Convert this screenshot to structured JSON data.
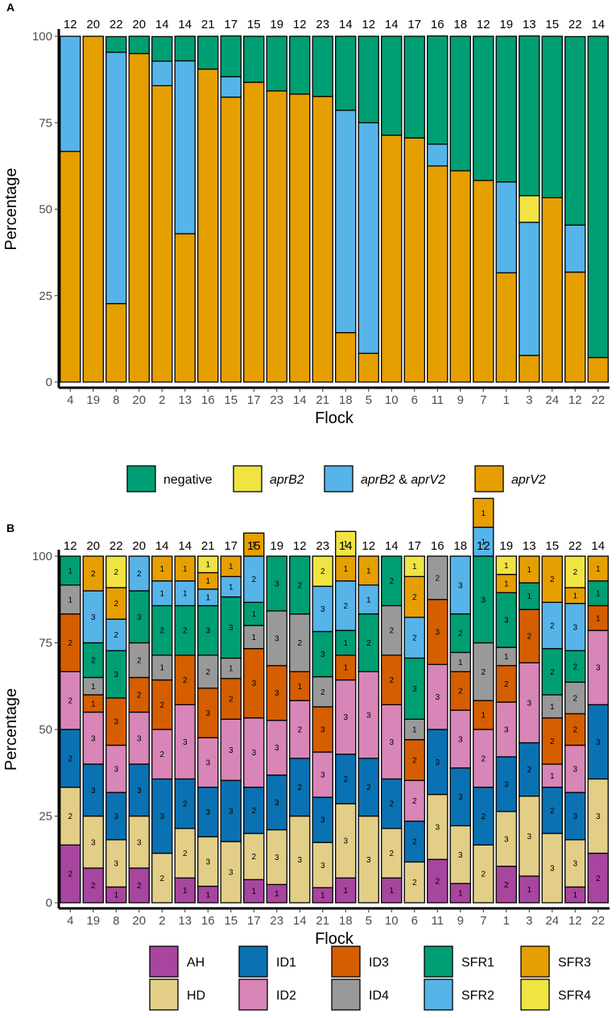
{
  "colors": {
    "negative": "#009E73",
    "aprB2": "#F0E442",
    "aprB2_aprV2": "#56B4E9",
    "aprV2": "#E69F00",
    "AH": "#A8459E",
    "HD": "#E2CE86",
    "ID1": "#0A72B2",
    "ID2": "#D885B8",
    "ID3": "#D55E00",
    "ID4": "#999999",
    "SFR1": "#009E73",
    "SFR2": "#56B4E9",
    "SFR3": "#E69F00",
    "SFR4": "#F0E442"
  },
  "chart_data": [
    {
      "panel": "A",
      "type": "bar",
      "stacked": true,
      "xlabel": "Flock",
      "ylabel": "Percentage",
      "ylim": [
        0,
        100
      ],
      "yticks": [
        0,
        25,
        50,
        75,
        100
      ],
      "categories": [
        "4",
        "19",
        "8",
        "20",
        "2",
        "13",
        "16",
        "15",
        "17",
        "23",
        "14",
        "21",
        "18",
        "5",
        "10",
        "6",
        "11",
        "9",
        "7",
        "1",
        "3",
        "24",
        "12",
        "22"
      ],
      "n_labels": [
        "12",
        "20",
        "22",
        "20",
        "14",
        "14",
        "21",
        "17",
        "15",
        "19",
        "12",
        "23",
        "14",
        "12",
        "14",
        "17",
        "16",
        "18",
        "12",
        "19",
        "13",
        "15",
        "22",
        "14"
      ],
      "legend": {
        "items": [
          {
            "key": "negative",
            "text": "negative"
          },
          {
            "key": "aprB2",
            "text": "aprB2"
          },
          {
            "key": "aprB2_aprV2",
            "text": "aprB2 & aprV2"
          },
          {
            "key": "aprV2",
            "text": "aprV2"
          }
        ]
      },
      "series_order_bottom_to_top": [
        "aprV2",
        "aprB2_aprV2",
        "aprB2",
        "negative"
      ],
      "series": [
        {
          "name": "aprV2",
          "values": [
            66.7,
            100,
            22.7,
            95,
            85.7,
            42.9,
            90.5,
            82.4,
            86.7,
            84.2,
            83.3,
            82.6,
            14.3,
            8.3,
            71.4,
            70.6,
            62.5,
            61.1,
            58.3,
            31.6,
            7.7,
            53.3,
            31.8,
            7.1
          ]
        },
        {
          "name": "aprB2_aprV2",
          "values": [
            33.3,
            0,
            72.7,
            0,
            7.1,
            50,
            0,
            5.9,
            0,
            0,
            0,
            0,
            64.3,
            66.7,
            0,
            0,
            6.3,
            0,
            0,
            26.3,
            38.5,
            0,
            13.6,
            0
          ]
        },
        {
          "name": "aprB2",
          "values": [
            0,
            0,
            0,
            0,
            0,
            0,
            0,
            0,
            0,
            0,
            0,
            0,
            0,
            0,
            0,
            0,
            0,
            0,
            0,
            0,
            7.7,
            0,
            0,
            0
          ]
        },
        {
          "name": "negative",
          "values": [
            0,
            0,
            4.5,
            5,
            7.1,
            7.1,
            9.5,
            11.8,
            13.3,
            15.8,
            16.7,
            17.4,
            21.4,
            25,
            28.6,
            29.4,
            31.3,
            38.9,
            41.7,
            42.1,
            46.2,
            46.7,
            54.5,
            92.9
          ]
        }
      ]
    },
    {
      "panel": "B",
      "type": "bar",
      "stacked": true,
      "xlabel": "Flock",
      "ylabel": "Percentage",
      "ylim": [
        0,
        100
      ],
      "yticks": [
        0,
        25,
        50,
        75,
        100
      ],
      "categories": [
        "4",
        "19",
        "8",
        "20",
        "2",
        "13",
        "16",
        "15",
        "17",
        "23",
        "14",
        "21",
        "18",
        "5",
        "10",
        "6",
        "11",
        "9",
        "7",
        "1",
        "3",
        "24",
        "12",
        "22"
      ],
      "n_labels": [
        "12",
        "20",
        "22",
        "20",
        "14",
        "14",
        "21",
        "17",
        "15",
        "19",
        "12",
        "23",
        "14",
        "12",
        "14",
        "17",
        "16",
        "18",
        "12",
        "19",
        "13",
        "15",
        "22",
        "14"
      ],
      "legend": {
        "items": [
          {
            "key": "AH",
            "text": "AH"
          },
          {
            "key": "HD",
            "text": "HD"
          },
          {
            "key": "ID1",
            "text": "ID1"
          },
          {
            "key": "ID2",
            "text": "ID2"
          },
          {
            "key": "ID3",
            "text": "ID3"
          },
          {
            "key": "ID4",
            "text": "ID4"
          },
          {
            "key": "SFR1",
            "text": "SFR1"
          },
          {
            "key": "SFR2",
            "text": "SFR2"
          },
          {
            "key": "SFR3",
            "text": "SFR3"
          },
          {
            "key": "SFR4",
            "text": "SFR4"
          }
        ]
      },
      "series_order_bottom_to_top": [
        "AH",
        "HD",
        "ID1",
        "ID2",
        "ID3",
        "ID4",
        "SFR1",
        "SFR2",
        "SFR3",
        "SFR4"
      ],
      "counts": {
        "AH": [
          2,
          2,
          1,
          2,
          0,
          1,
          1,
          0,
          1,
          1,
          0,
          1,
          1,
          0,
          1,
          0,
          2,
          1,
          0,
          2,
          1,
          0,
          1,
          2
        ],
        "HD": [
          2,
          3,
          3,
          3,
          2,
          2,
          3,
          3,
          2,
          3,
          3,
          3,
          3,
          3,
          2,
          2,
          3,
          3,
          2,
          3,
          3,
          3,
          3,
          3
        ],
        "ID1": [
          2,
          3,
          3,
          3,
          3,
          2,
          3,
          3,
          2,
          3,
          2,
          3,
          2,
          2,
          2,
          2,
          3,
          3,
          2,
          3,
          2,
          2,
          3,
          3
        ],
        "ID2": [
          2,
          3,
          3,
          3,
          2,
          3,
          3,
          3,
          3,
          3,
          2,
          3,
          3,
          3,
          3,
          2,
          3,
          3,
          2,
          3,
          3,
          1,
          3,
          3
        ],
        "ID3": [
          2,
          1,
          3,
          2,
          2,
          2,
          3,
          2,
          3,
          3,
          1,
          3,
          1,
          0,
          2,
          2,
          3,
          2,
          1,
          2,
          2,
          2,
          2,
          1
        ],
        "ID4": [
          1,
          1,
          0,
          2,
          1,
          0,
          2,
          1,
          1,
          3,
          2,
          2,
          0,
          0,
          2,
          1,
          2,
          1,
          2,
          1,
          0,
          1,
          2,
          0
        ],
        "SFR1": [
          1,
          2,
          3,
          3,
          2,
          2,
          3,
          3,
          1,
          3,
          2,
          3,
          1,
          2,
          2,
          3,
          0,
          2,
          3,
          3,
          1,
          2,
          2,
          1
        ],
        "SFR2": [
          0,
          3,
          2,
          2,
          1,
          1,
          1,
          1,
          2,
          0,
          0,
          3,
          2,
          1,
          0,
          2,
          0,
          3,
          1,
          0,
          0,
          2,
          3,
          0
        ],
        "SFR3": [
          0,
          2,
          2,
          0,
          1,
          1,
          1,
          1,
          1,
          0,
          0,
          0,
          1,
          1,
          0,
          2,
          0,
          0,
          1,
          1,
          1,
          2,
          1,
          1
        ],
        "SFR4": [
          0,
          0,
          2,
          0,
          0,
          0,
          1,
          0,
          0,
          0,
          0,
          2,
          1,
          0,
          0,
          1,
          0,
          0,
          0,
          1,
          0,
          0,
          2,
          0
        ]
      }
    }
  ]
}
